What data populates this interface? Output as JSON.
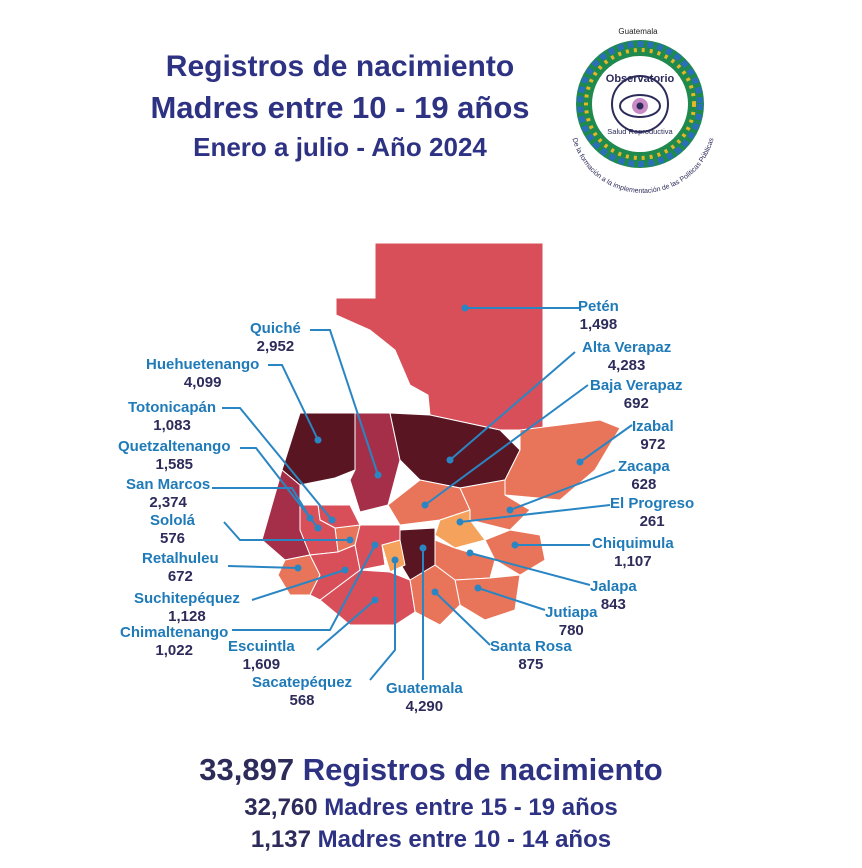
{
  "header": {
    "title": "Registros de nacimiento",
    "subtitle": "Madres entre 10 - 19 años",
    "period": "Enero a julio - Año 2024"
  },
  "logo": {
    "top_text": "Guatemala",
    "ring_word1": "Observatorio",
    "ring_word2": "Salud Reproductiva",
    "outer_text": "De la formación a la implementación de las Políticas Públicas",
    "icon": "eye-icon"
  },
  "colors": {
    "title": "#2e3283",
    "label_name": "#1f7ab8",
    "label_value": "#2c2b5a",
    "leader_line": "#2a86c3",
    "scale_lowest": "#f4a25c",
    "scale_low": "#e8755a",
    "scale_mid": "#d84f5a",
    "scale_high": "#a52f48",
    "scale_highest": "#5a1522"
  },
  "departments": [
    {
      "name": "Petén",
      "value": "1,498"
    },
    {
      "name": "Alta Verapaz",
      "value": "4,283"
    },
    {
      "name": "Baja Verapaz",
      "value": "692"
    },
    {
      "name": "Izabal",
      "value": "972"
    },
    {
      "name": "Zacapa",
      "value": "628"
    },
    {
      "name": "El Progreso",
      "value": "261"
    },
    {
      "name": "Chiquimula",
      "value": "1,107"
    },
    {
      "name": "Jalapa",
      "value": "843"
    },
    {
      "name": "Jutiapa",
      "value": "780"
    },
    {
      "name": "Santa Rosa",
      "value": "875"
    },
    {
      "name": "Guatemala",
      "value": "4,290"
    },
    {
      "name": "Sacatepéquez",
      "value": "568"
    },
    {
      "name": "Escuintla",
      "value": "1,609"
    },
    {
      "name": "Chimaltenango",
      "value": "1,022"
    },
    {
      "name": "Suchitepéquez",
      "value": "1,128"
    },
    {
      "name": "Retalhuleu",
      "value": "672"
    },
    {
      "name": "Sololá",
      "value": "576"
    },
    {
      "name": "San Marcos",
      "value": "2,374"
    },
    {
      "name": "Quetzaltenango",
      "value": "1,585"
    },
    {
      "name": "Totonicapán",
      "value": "1,083"
    },
    {
      "name": "Huehuetenango",
      "value": "4,099"
    },
    {
      "name": "Quiché",
      "value": "2,952"
    }
  ],
  "totals": {
    "total_value": "33,897",
    "total_label": "Registros de nacimiento",
    "group1_value": "32,760",
    "group1_label": "Madres entre 15 - 19 años",
    "group2_value": "1,137",
    "group2_label": "Madres entre 10 - 14 años"
  }
}
